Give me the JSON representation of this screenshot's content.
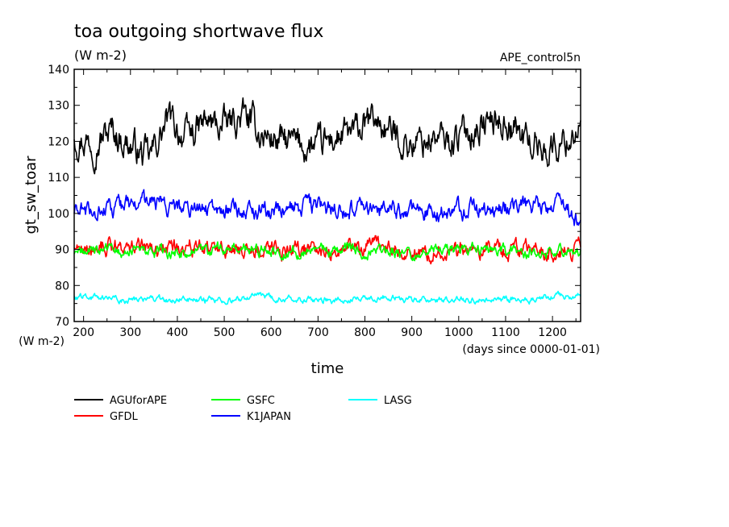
{
  "chart_data": {
    "type": "line",
    "title": "toa outgoing shortwave flux",
    "subtitle": "(W m-2)",
    "experiment": "APE_control5n",
    "xlabel": "time",
    "xunit": "(days since 0000-01-01)",
    "ylabel": "gt_sw_toar",
    "yunit": "(W m-2)",
    "xlim": [
      180,
      1260
    ],
    "ylim": [
      70,
      140
    ],
    "xticks": [
      200,
      300,
      400,
      500,
      600,
      700,
      800,
      900,
      1000,
      1100,
      1200
    ],
    "yticks": [
      70,
      80,
      90,
      100,
      110,
      120,
      130,
      140
    ],
    "grid": false,
    "legend_position": "bottom",
    "series": [
      {
        "name": "AGUforAPE",
        "color": "#000000",
        "mean": 121,
        "amp": 5,
        "x": [
          180,
          220,
          260,
          300,
          340,
          380,
          420,
          460,
          500,
          540,
          580,
          620,
          660,
          700,
          740,
          780,
          820,
          860,
          900,
          940,
          980,
          1020,
          1060,
          1100,
          1140,
          1180,
          1220,
          1260
        ],
        "y": [
          122,
          120,
          123,
          119,
          115,
          126,
          121,
          125,
          124,
          127,
          122,
          120,
          119,
          118,
          121,
          122,
          126,
          122,
          119,
          121,
          120,
          123,
          125,
          126,
          121,
          118,
          119,
          125
        ]
      },
      {
        "name": "GFDL",
        "color": "#ff0000",
        "mean": 90.5,
        "amp": 2.6,
        "x": [
          180,
          260,
          340,
          420,
          500,
          580,
          660,
          740,
          820,
          900,
          980,
          1060,
          1140,
          1220,
          1260
        ],
        "y": [
          91,
          91,
          90,
          91,
          90,
          90,
          90,
          90,
          91,
          89,
          90,
          90,
          90,
          89,
          90
        ]
      },
      {
        "name": "GSFC",
        "color": "#00ff00",
        "mean": 89.5,
        "amp": 1.8,
        "x": [
          180,
          260,
          340,
          420,
          500,
          580,
          660,
          740,
          820,
          900,
          980,
          1060,
          1140,
          1220,
          1260
        ],
        "y": [
          89,
          90,
          89,
          89,
          90,
          90,
          89,
          90,
          90,
          89,
          90,
          90,
          89,
          90,
          89
        ]
      },
      {
        "name": "K1JAPAN",
        "color": "#0000ff",
        "mean": 101,
        "amp": 2.8,
        "x": [
          180,
          260,
          340,
          420,
          500,
          580,
          660,
          740,
          820,
          900,
          980,
          1060,
          1140,
          1220,
          1260
        ],
        "y": [
          100,
          101,
          103,
          101,
          101,
          101,
          102,
          101,
          101,
          100,
          101,
          101,
          102,
          102,
          98
        ]
      },
      {
        "name": "LASG",
        "color": "#00ffff",
        "mean": 76,
        "amp": 1.0,
        "x": [
          180,
          260,
          340,
          420,
          500,
          580,
          660,
          740,
          820,
          900,
          980,
          1060,
          1140,
          1220,
          1260
        ],
        "y": [
          77,
          76,
          76,
          76,
          76,
          77,
          76,
          76,
          77,
          76,
          76,
          76,
          76,
          77,
          77
        ]
      }
    ]
  }
}
